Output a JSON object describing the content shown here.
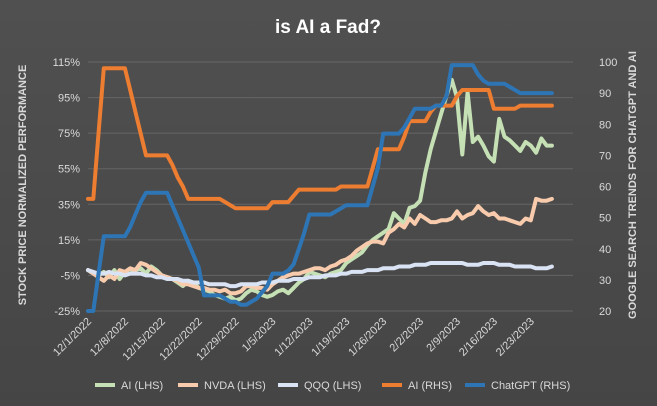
{
  "chart_data": {
    "type": "line",
    "title": "is AI a Fad?",
    "ylabel_left": "STOCK PRICE NORMALIZED PERFORMANCE",
    "ylabel_right": "GOOGLE SEARCH TRENDS FOR CHATGPT AND AI",
    "ylim_left": [
      -25,
      115
    ],
    "ylim_right": [
      20,
      100
    ],
    "yticks_left": [
      "115%",
      "95%",
      "75%",
      "55%",
      "35%",
      "15%",
      "-5%",
      "-25%"
    ],
    "yticks_left_values": [
      115,
      95,
      75,
      55,
      35,
      15,
      -5,
      -25
    ],
    "yticks_right": [
      "100",
      "90",
      "80",
      "70",
      "60",
      "50",
      "40",
      "30",
      "20"
    ],
    "yticks_right_values": [
      100,
      90,
      80,
      70,
      60,
      50,
      40,
      30,
      20
    ],
    "xlim": [
      0,
      92
    ],
    "xticks": [
      "12/1/2022",
      "12/8/2022",
      "12/15/2022",
      "12/22/2022",
      "12/29/2022",
      "1/5/2023",
      "1/12/2023",
      "1/19/2023",
      "1/26/2023",
      "2/2/2023",
      "2/9/2023",
      "2/16/2023",
      "2/23/2023"
    ],
    "xtick_pos": [
      0,
      7,
      14,
      21,
      28,
      35,
      42,
      49,
      56,
      63,
      70,
      77,
      84
    ],
    "grid": true,
    "legend_position": "bottom",
    "series": [
      {
        "name": "AI (LHS)",
        "axis": "left",
        "color": "#c5e0b4",
        "x": [
          0,
          1,
          2,
          3,
          4,
          5,
          6,
          7,
          8,
          9,
          10,
          11,
          12,
          13,
          14,
          15,
          16,
          17,
          18,
          19,
          20,
          21,
          22,
          23,
          24,
          25,
          26,
          27,
          28,
          29,
          30,
          31,
          32,
          33,
          34,
          35,
          36,
          37,
          38,
          39,
          40,
          41,
          42,
          43,
          44,
          45,
          46,
          47,
          48,
          49,
          50,
          51,
          52,
          53,
          54,
          55,
          56,
          57,
          58,
          59,
          60,
          61,
          62,
          63,
          64,
          65,
          66,
          67,
          68,
          69,
          70,
          71,
          72,
          73,
          74,
          75,
          76,
          77,
          78,
          79,
          80,
          81,
          82,
          83,
          84,
          85,
          86,
          87,
          88
        ],
        "y": [
          -2,
          -4,
          -5,
          -3,
          -6,
          -2,
          -7,
          -3,
          -4,
          -2,
          -1,
          -4,
          0,
          -2,
          -5,
          -6,
          -7,
          -9,
          -11,
          -8,
          -9,
          -12,
          -13,
          -14,
          -16,
          -17,
          -18,
          -17,
          -19,
          -18,
          -15,
          -13,
          -14,
          -16,
          -17,
          -16,
          -14,
          -13,
          -15,
          -12,
          -9,
          -7,
          -3,
          -4,
          -5,
          -6,
          -4,
          -3,
          -2,
          2,
          4,
          6,
          8,
          12,
          15,
          17,
          19,
          21,
          30,
          27,
          24,
          33,
          34,
          37,
          53,
          66,
          76,
          86,
          96,
          105,
          95,
          63,
          98,
          70,
          73,
          68,
          62,
          59,
          83,
          73,
          71,
          68,
          65,
          70,
          68,
          64,
          72,
          68,
          68
        ]
      },
      {
        "name": "NVDA (LHS)",
        "axis": "left",
        "color": "#f8cbad",
        "x": [
          0,
          1,
          2,
          3,
          4,
          5,
          6,
          7,
          8,
          9,
          10,
          11,
          12,
          13,
          14,
          15,
          16,
          17,
          18,
          19,
          20,
          21,
          22,
          23,
          24,
          25,
          26,
          27,
          28,
          29,
          30,
          31,
          32,
          33,
          34,
          35,
          36,
          37,
          38,
          39,
          40,
          41,
          42,
          43,
          44,
          45,
          46,
          47,
          48,
          49,
          50,
          51,
          52,
          53,
          54,
          55,
          56,
          57,
          58,
          59,
          60,
          61,
          62,
          63,
          64,
          65,
          66,
          67,
          68,
          69,
          70,
          71,
          72,
          73,
          74,
          75,
          76,
          77,
          78,
          79,
          80,
          81,
          82,
          83,
          84,
          85,
          86,
          87,
          88
        ],
        "y": [
          -2,
          -4,
          -6,
          -8,
          -5,
          -7,
          -2,
          -3,
          -1,
          -2,
          2,
          1,
          -1,
          -3,
          -5,
          -6,
          -7,
          -8,
          -10,
          -10,
          -11,
          -12,
          -12,
          -13,
          -13,
          -14,
          -13,
          -15,
          -15,
          -14,
          -11,
          -11,
          -12,
          -12,
          -13,
          -10,
          -8,
          -6,
          -5,
          -4,
          -4,
          -3,
          -2,
          -1,
          -1,
          -2,
          0,
          1,
          3,
          4,
          6,
          9,
          11,
          13,
          14,
          14,
          13,
          19,
          21,
          24,
          22,
          27,
          24,
          29,
          27,
          25,
          25,
          26,
          26,
          27,
          31,
          27,
          29,
          30,
          34,
          31,
          29,
          30,
          27,
          27,
          26,
          25,
          24,
          27,
          26,
          38,
          37,
          37,
          38
        ]
      },
      {
        "name": "QQQ (LHS)",
        "axis": "left",
        "color": "#dae3f3",
        "x": [
          0,
          1,
          2,
          3,
          4,
          5,
          6,
          7,
          8,
          9,
          10,
          11,
          12,
          13,
          14,
          15,
          16,
          17,
          18,
          19,
          20,
          21,
          22,
          23,
          24,
          25,
          26,
          27,
          28,
          29,
          30,
          31,
          32,
          33,
          34,
          35,
          36,
          37,
          38,
          39,
          40,
          41,
          42,
          43,
          44,
          45,
          46,
          47,
          48,
          49,
          50,
          51,
          52,
          53,
          54,
          55,
          56,
          57,
          58,
          59,
          60,
          61,
          62,
          63,
          64,
          65,
          66,
          67,
          68,
          69,
          70,
          71,
          72,
          73,
          74,
          75,
          76,
          77,
          78,
          79,
          80,
          81,
          82,
          83,
          84,
          85,
          86,
          87,
          88
        ],
        "y": [
          -2,
          -3,
          -4,
          -4,
          -3,
          -4,
          -4,
          -5,
          -4,
          -4,
          -4,
          -5,
          -5,
          -6,
          -6,
          -7,
          -7,
          -7,
          -8,
          -8,
          -9,
          -9,
          -9,
          -10,
          -10,
          -10,
          -10,
          -11,
          -11,
          -10,
          -10,
          -10,
          -10,
          -9,
          -9,
          -9,
          -8,
          -8,
          -8,
          -7,
          -7,
          -7,
          -6,
          -6,
          -6,
          -5,
          -5,
          -5,
          -4,
          -4,
          -3,
          -3,
          -3,
          -2,
          -2,
          -2,
          -1,
          -1,
          -1,
          0,
          0,
          0,
          1,
          1,
          1,
          2,
          2,
          2,
          2,
          2,
          2,
          2,
          1,
          1,
          1,
          2,
          2,
          2,
          1,
          1,
          1,
          0,
          0,
          0,
          0,
          -1,
          -1,
          -1,
          0
        ]
      },
      {
        "name": "AI (RHS)",
        "axis": "right",
        "color": "#ed7d31",
        "x": [
          0,
          1,
          2,
          3,
          4,
          5,
          6,
          7,
          8,
          9,
          10,
          11,
          12,
          13,
          14,
          15,
          16,
          17,
          18,
          19,
          20,
          21,
          22,
          23,
          24,
          25,
          26,
          27,
          28,
          29,
          30,
          31,
          32,
          33,
          34,
          35,
          36,
          37,
          38,
          39,
          40,
          41,
          42,
          43,
          44,
          45,
          46,
          47,
          48,
          49,
          50,
          51,
          52,
          53,
          54,
          55,
          56,
          57,
          58,
          59,
          60,
          61,
          62,
          63,
          64,
          65,
          66,
          67,
          68,
          69,
          70,
          71,
          72,
          73,
          74,
          75,
          76,
          77,
          78,
          79,
          80,
          81,
          82,
          83,
          84,
          85,
          86,
          87,
          88
        ],
        "y": [
          56,
          56,
          77,
          98,
          98,
          98,
          98,
          98,
          91,
          84,
          77,
          70,
          70,
          70,
          70,
          70,
          67,
          63,
          60,
          56,
          56,
          56,
          56,
          56,
          56,
          56,
          55,
          54,
          53,
          53,
          53,
          53,
          53,
          53,
          53,
          55,
          55,
          55,
          55,
          57,
          59,
          59,
          59,
          59,
          59,
          59,
          59,
          59,
          60,
          60,
          60,
          60,
          60,
          60,
          66,
          72,
          72,
          72,
          72,
          72,
          76,
          81,
          81,
          81,
          81,
          84,
          86,
          86,
          86,
          86,
          89,
          91,
          91,
          91,
          91,
          91,
          91,
          85,
          85,
          85,
          85,
          85,
          86,
          86,
          86,
          86,
          86,
          86,
          86
        ]
      },
      {
        "name": "ChatGPT (RHS)",
        "axis": "right",
        "color": "#2e75b6",
        "x": [
          0,
          1,
          2,
          3,
          4,
          5,
          6,
          7,
          8,
          9,
          10,
          11,
          12,
          13,
          14,
          15,
          16,
          17,
          18,
          19,
          20,
          21,
          22,
          23,
          24,
          25,
          26,
          27,
          28,
          29,
          30,
          31,
          32,
          33,
          34,
          35,
          36,
          37,
          38,
          39,
          40,
          41,
          42,
          43,
          44,
          45,
          46,
          47,
          48,
          49,
          50,
          51,
          52,
          53,
          54,
          55,
          56,
          57,
          58,
          59,
          60,
          61,
          62,
          63,
          64,
          65,
          66,
          67,
          68,
          69,
          70,
          71,
          72,
          73,
          74,
          75,
          76,
          77,
          78,
          79,
          80,
          81,
          82,
          83,
          84,
          85,
          86,
          87,
          88
        ],
        "y": [
          20,
          20,
          32,
          44,
          44,
          44,
          44,
          44,
          47,
          51,
          55,
          58,
          58,
          58,
          58,
          58,
          54,
          50,
          46,
          42,
          38,
          34,
          25,
          25,
          25,
          25,
          24,
          23,
          23,
          22,
          22,
          23,
          24,
          26,
          28,
          32,
          32,
          32,
          33,
          35,
          40,
          45,
          51,
          51,
          51,
          51,
          51,
          52,
          53,
          54,
          54,
          54,
          54,
          54,
          60,
          66,
          77,
          77,
          77,
          77,
          79,
          82,
          85,
          85,
          85,
          85,
          86,
          86,
          89,
          99,
          99,
          99,
          99,
          99,
          96,
          94,
          93,
          93,
          93,
          93,
          92,
          91,
          90,
          90,
          90,
          90,
          90,
          90,
          90
        ]
      }
    ]
  }
}
